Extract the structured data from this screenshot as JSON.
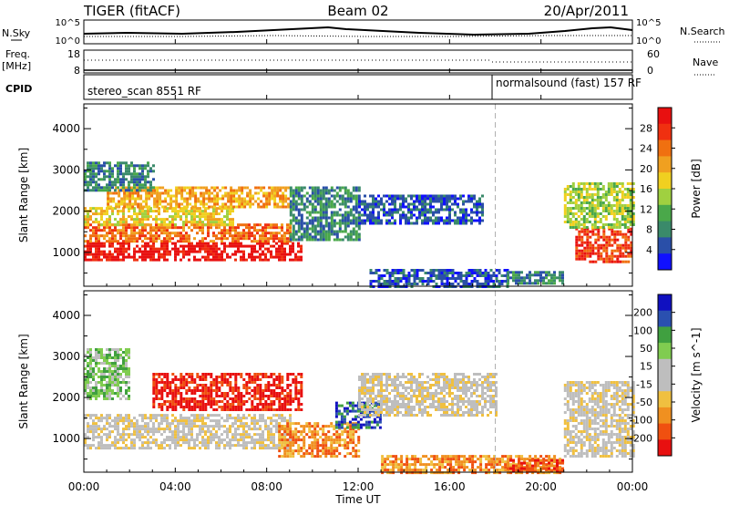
{
  "header": {
    "title": "TIGER (fitACF)",
    "beam": "Beam 02",
    "date": "20/Apr/2011"
  },
  "top_panels": {
    "nsky_label": "N.Sky",
    "nsearch_label": "N.Search",
    "nsky_ticks": [
      "10^5",
      "10^0"
    ],
    "nsearch_ticks": [
      "10^5",
      "10^0"
    ],
    "freq_label": "Freq.",
    "freq_unit": "[MHz]",
    "freq_ticks": [
      "18",
      "8"
    ],
    "nave_ticks": [
      "60",
      "0"
    ],
    "nave_label": "Nave",
    "cpid_label": "CPID",
    "cpid_left": "stereo_scan 8551 RF",
    "cpid_right": "normalsound (fast) 157 RF"
  },
  "x_axis": {
    "label": "Time UT",
    "ticks": [
      "00:00",
      "04:00",
      "08:00",
      "12:00",
      "16:00",
      "20:00",
      "00:00"
    ]
  },
  "colors": {
    "power": [
      "#1010ff",
      "#2a4fa8",
      "#3a8a6a",
      "#4aa84a",
      "#a0d040",
      "#f0d020",
      "#f0a020",
      "#f07010",
      "#f03010",
      "#e81010"
    ],
    "velocity": [
      "#e81010",
      "#f05010",
      "#f09020",
      "#f0c040",
      "#bebebe",
      "#bebebe",
      "#80cc50",
      "#40a040",
      "#2a50b0",
      "#1010c0"
    ]
  },
  "chart_data": [
    {
      "type": "heatmap",
      "name": "power",
      "xlabel": "",
      "ylabel": "Slant Range [km]",
      "xlim": [
        0,
        24
      ],
      "ylim": [
        180,
        4600
      ],
      "yticks": [
        "1000",
        "2000",
        "3000",
        "4000"
      ],
      "colorbar": {
        "label": "Power [dB]",
        "ticks": [
          "4",
          "8",
          "12",
          "16",
          "20",
          "24",
          "28"
        ]
      },
      "regions": [
        {
          "t": [
            0.0,
            9.5
          ],
          "r": [
            800,
            1250
          ],
          "level": 9
        },
        {
          "t": [
            0.0,
            9.0
          ],
          "r": [
            1250,
            1700
          ],
          "level": 7
        },
        {
          "t": [
            0.0,
            6.5
          ],
          "r": [
            1700,
            2100
          ],
          "level": 5
        },
        {
          "t": [
            1.0,
            9.0
          ],
          "r": [
            2100,
            2600
          ],
          "level": 6
        },
        {
          "t": [
            0.0,
            3.0
          ],
          "r": [
            2500,
            3200
          ],
          "level": 2
        },
        {
          "t": [
            9.0,
            12.0
          ],
          "r": [
            1300,
            2600
          ],
          "level": 2
        },
        {
          "t": [
            12.0,
            17.5
          ],
          "r": [
            1700,
            2400
          ],
          "level": 1
        },
        {
          "t": [
            12.5,
            18.5
          ],
          "r": [
            200,
            600
          ],
          "level": 1
        },
        {
          "t": [
            18.5,
            21.0
          ],
          "r": [
            250,
            550
          ],
          "level": 2
        },
        {
          "t": [
            21.5,
            24.0
          ],
          "r": [
            800,
            1600
          ],
          "level": 8
        },
        {
          "t": [
            21.0,
            24.0
          ],
          "r": [
            1600,
            2700
          ],
          "level": 4
        }
      ]
    },
    {
      "type": "heatmap",
      "name": "velocity",
      "xlabel": "Time UT",
      "ylabel": "Slant Range [km]",
      "xlim": [
        0,
        24
      ],
      "ylim": [
        180,
        4600
      ],
      "yticks": [
        "1000",
        "2000",
        "3000",
        "4000"
      ],
      "colorbar": {
        "label": "Velocity [m s^-1]",
        "ticks": [
          "200",
          "100",
          "50",
          "15",
          "-15",
          "-50",
          "-100",
          "-200"
        ]
      },
      "regions": [
        {
          "t": [
            0.0,
            9.0
          ],
          "r": [
            800,
            1600
          ],
          "level": 4
        },
        {
          "t": [
            3.0,
            9.5
          ],
          "r": [
            1700,
            2600
          ],
          "level": 0
        },
        {
          "t": [
            8.5,
            12.0
          ],
          "r": [
            600,
            1400
          ],
          "level": 2
        },
        {
          "t": [
            11.0,
            13.0
          ],
          "r": [
            1300,
            1900
          ],
          "level": 8
        },
        {
          "t": [
            12.0,
            18.0
          ],
          "r": [
            1600,
            2600
          ],
          "level": 4
        },
        {
          "t": [
            13.0,
            21.0
          ],
          "r": [
            200,
            600
          ],
          "level": 2
        },
        {
          "t": [
            18.5,
            21.0
          ],
          "r": [
            200,
            500
          ],
          "level": 1
        },
        {
          "t": [
            21.0,
            24.0
          ],
          "r": [
            600,
            2400
          ],
          "level": 4
        },
        {
          "t": [
            0.0,
            2.0
          ],
          "r": [
            2000,
            3200
          ],
          "level": 6
        }
      ]
    }
  ]
}
